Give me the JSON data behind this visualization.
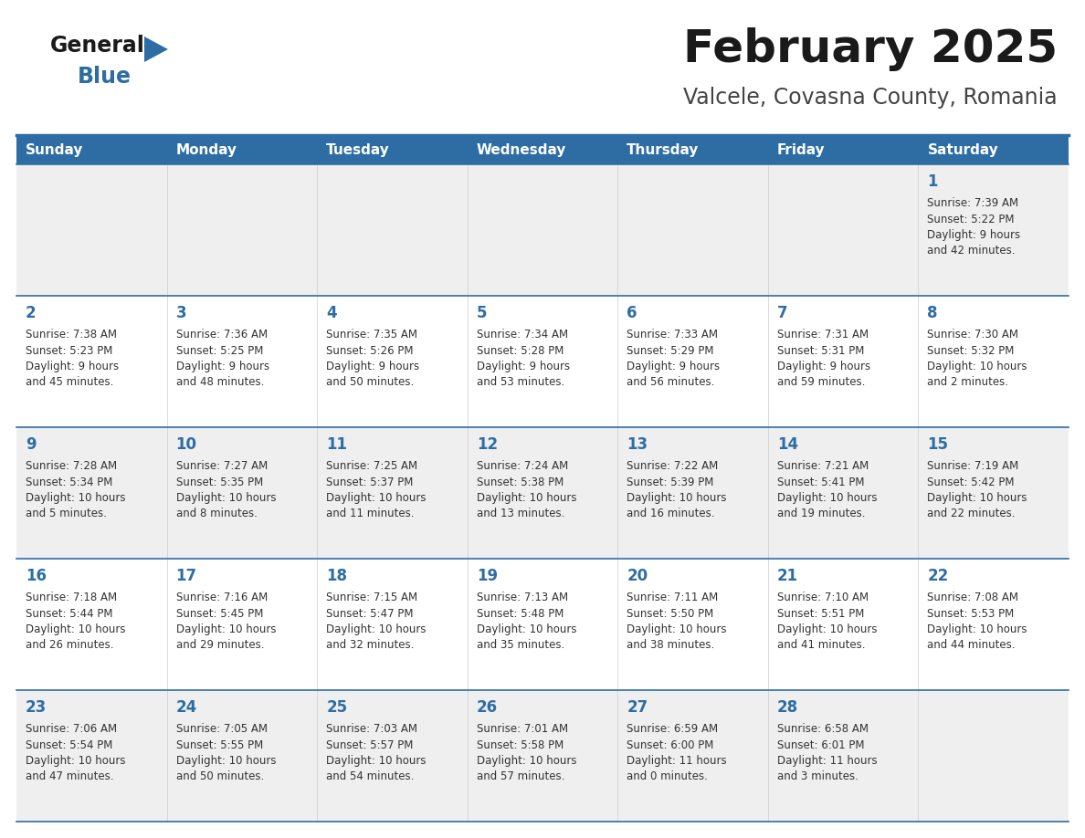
{
  "title": "February 2025",
  "subtitle": "Valcele, Covasna County, Romania",
  "days_of_week": [
    "Sunday",
    "Monday",
    "Tuesday",
    "Wednesday",
    "Thursday",
    "Friday",
    "Saturday"
  ],
  "header_bg": "#2E6DA4",
  "header_text_color": "#FFFFFF",
  "cell_bg_light": "#EFEFEF",
  "cell_bg_white": "#FFFFFF",
  "day_number_color": "#2E6DA4",
  "cell_text_color": "#333333",
  "grid_line_color": "#2E6DA4",
  "title_color": "#1a1a1a",
  "subtitle_color": "#444444",
  "logo_general_color": "#1a1a1a",
  "logo_blue_color": "#2E6DA4",
  "weeks": [
    [
      {
        "day": null,
        "info": null
      },
      {
        "day": null,
        "info": null
      },
      {
        "day": null,
        "info": null
      },
      {
        "day": null,
        "info": null
      },
      {
        "day": null,
        "info": null
      },
      {
        "day": null,
        "info": null
      },
      {
        "day": 1,
        "info": "Sunrise: 7:39 AM\nSunset: 5:22 PM\nDaylight: 9 hours\nand 42 minutes."
      }
    ],
    [
      {
        "day": 2,
        "info": "Sunrise: 7:38 AM\nSunset: 5:23 PM\nDaylight: 9 hours\nand 45 minutes."
      },
      {
        "day": 3,
        "info": "Sunrise: 7:36 AM\nSunset: 5:25 PM\nDaylight: 9 hours\nand 48 minutes."
      },
      {
        "day": 4,
        "info": "Sunrise: 7:35 AM\nSunset: 5:26 PM\nDaylight: 9 hours\nand 50 minutes."
      },
      {
        "day": 5,
        "info": "Sunrise: 7:34 AM\nSunset: 5:28 PM\nDaylight: 9 hours\nand 53 minutes."
      },
      {
        "day": 6,
        "info": "Sunrise: 7:33 AM\nSunset: 5:29 PM\nDaylight: 9 hours\nand 56 minutes."
      },
      {
        "day": 7,
        "info": "Sunrise: 7:31 AM\nSunset: 5:31 PM\nDaylight: 9 hours\nand 59 minutes."
      },
      {
        "day": 8,
        "info": "Sunrise: 7:30 AM\nSunset: 5:32 PM\nDaylight: 10 hours\nand 2 minutes."
      }
    ],
    [
      {
        "day": 9,
        "info": "Sunrise: 7:28 AM\nSunset: 5:34 PM\nDaylight: 10 hours\nand 5 minutes."
      },
      {
        "day": 10,
        "info": "Sunrise: 7:27 AM\nSunset: 5:35 PM\nDaylight: 10 hours\nand 8 minutes."
      },
      {
        "day": 11,
        "info": "Sunrise: 7:25 AM\nSunset: 5:37 PM\nDaylight: 10 hours\nand 11 minutes."
      },
      {
        "day": 12,
        "info": "Sunrise: 7:24 AM\nSunset: 5:38 PM\nDaylight: 10 hours\nand 13 minutes."
      },
      {
        "day": 13,
        "info": "Sunrise: 7:22 AM\nSunset: 5:39 PM\nDaylight: 10 hours\nand 16 minutes."
      },
      {
        "day": 14,
        "info": "Sunrise: 7:21 AM\nSunset: 5:41 PM\nDaylight: 10 hours\nand 19 minutes."
      },
      {
        "day": 15,
        "info": "Sunrise: 7:19 AM\nSunset: 5:42 PM\nDaylight: 10 hours\nand 22 minutes."
      }
    ],
    [
      {
        "day": 16,
        "info": "Sunrise: 7:18 AM\nSunset: 5:44 PM\nDaylight: 10 hours\nand 26 minutes."
      },
      {
        "day": 17,
        "info": "Sunrise: 7:16 AM\nSunset: 5:45 PM\nDaylight: 10 hours\nand 29 minutes."
      },
      {
        "day": 18,
        "info": "Sunrise: 7:15 AM\nSunset: 5:47 PM\nDaylight: 10 hours\nand 32 minutes."
      },
      {
        "day": 19,
        "info": "Sunrise: 7:13 AM\nSunset: 5:48 PM\nDaylight: 10 hours\nand 35 minutes."
      },
      {
        "day": 20,
        "info": "Sunrise: 7:11 AM\nSunset: 5:50 PM\nDaylight: 10 hours\nand 38 minutes."
      },
      {
        "day": 21,
        "info": "Sunrise: 7:10 AM\nSunset: 5:51 PM\nDaylight: 10 hours\nand 41 minutes."
      },
      {
        "day": 22,
        "info": "Sunrise: 7:08 AM\nSunset: 5:53 PM\nDaylight: 10 hours\nand 44 minutes."
      }
    ],
    [
      {
        "day": 23,
        "info": "Sunrise: 7:06 AM\nSunset: 5:54 PM\nDaylight: 10 hours\nand 47 minutes."
      },
      {
        "day": 24,
        "info": "Sunrise: 7:05 AM\nSunset: 5:55 PM\nDaylight: 10 hours\nand 50 minutes."
      },
      {
        "day": 25,
        "info": "Sunrise: 7:03 AM\nSunset: 5:57 PM\nDaylight: 10 hours\nand 54 minutes."
      },
      {
        "day": 26,
        "info": "Sunrise: 7:01 AM\nSunset: 5:58 PM\nDaylight: 10 hours\nand 57 minutes."
      },
      {
        "day": 27,
        "info": "Sunrise: 6:59 AM\nSunset: 6:00 PM\nDaylight: 11 hours\nand 0 minutes."
      },
      {
        "day": 28,
        "info": "Sunrise: 6:58 AM\nSunset: 6:01 PM\nDaylight: 11 hours\nand 3 minutes."
      },
      {
        "day": null,
        "info": null
      }
    ]
  ],
  "figsize": [
    11.88,
    9.18
  ],
  "dpi": 100
}
